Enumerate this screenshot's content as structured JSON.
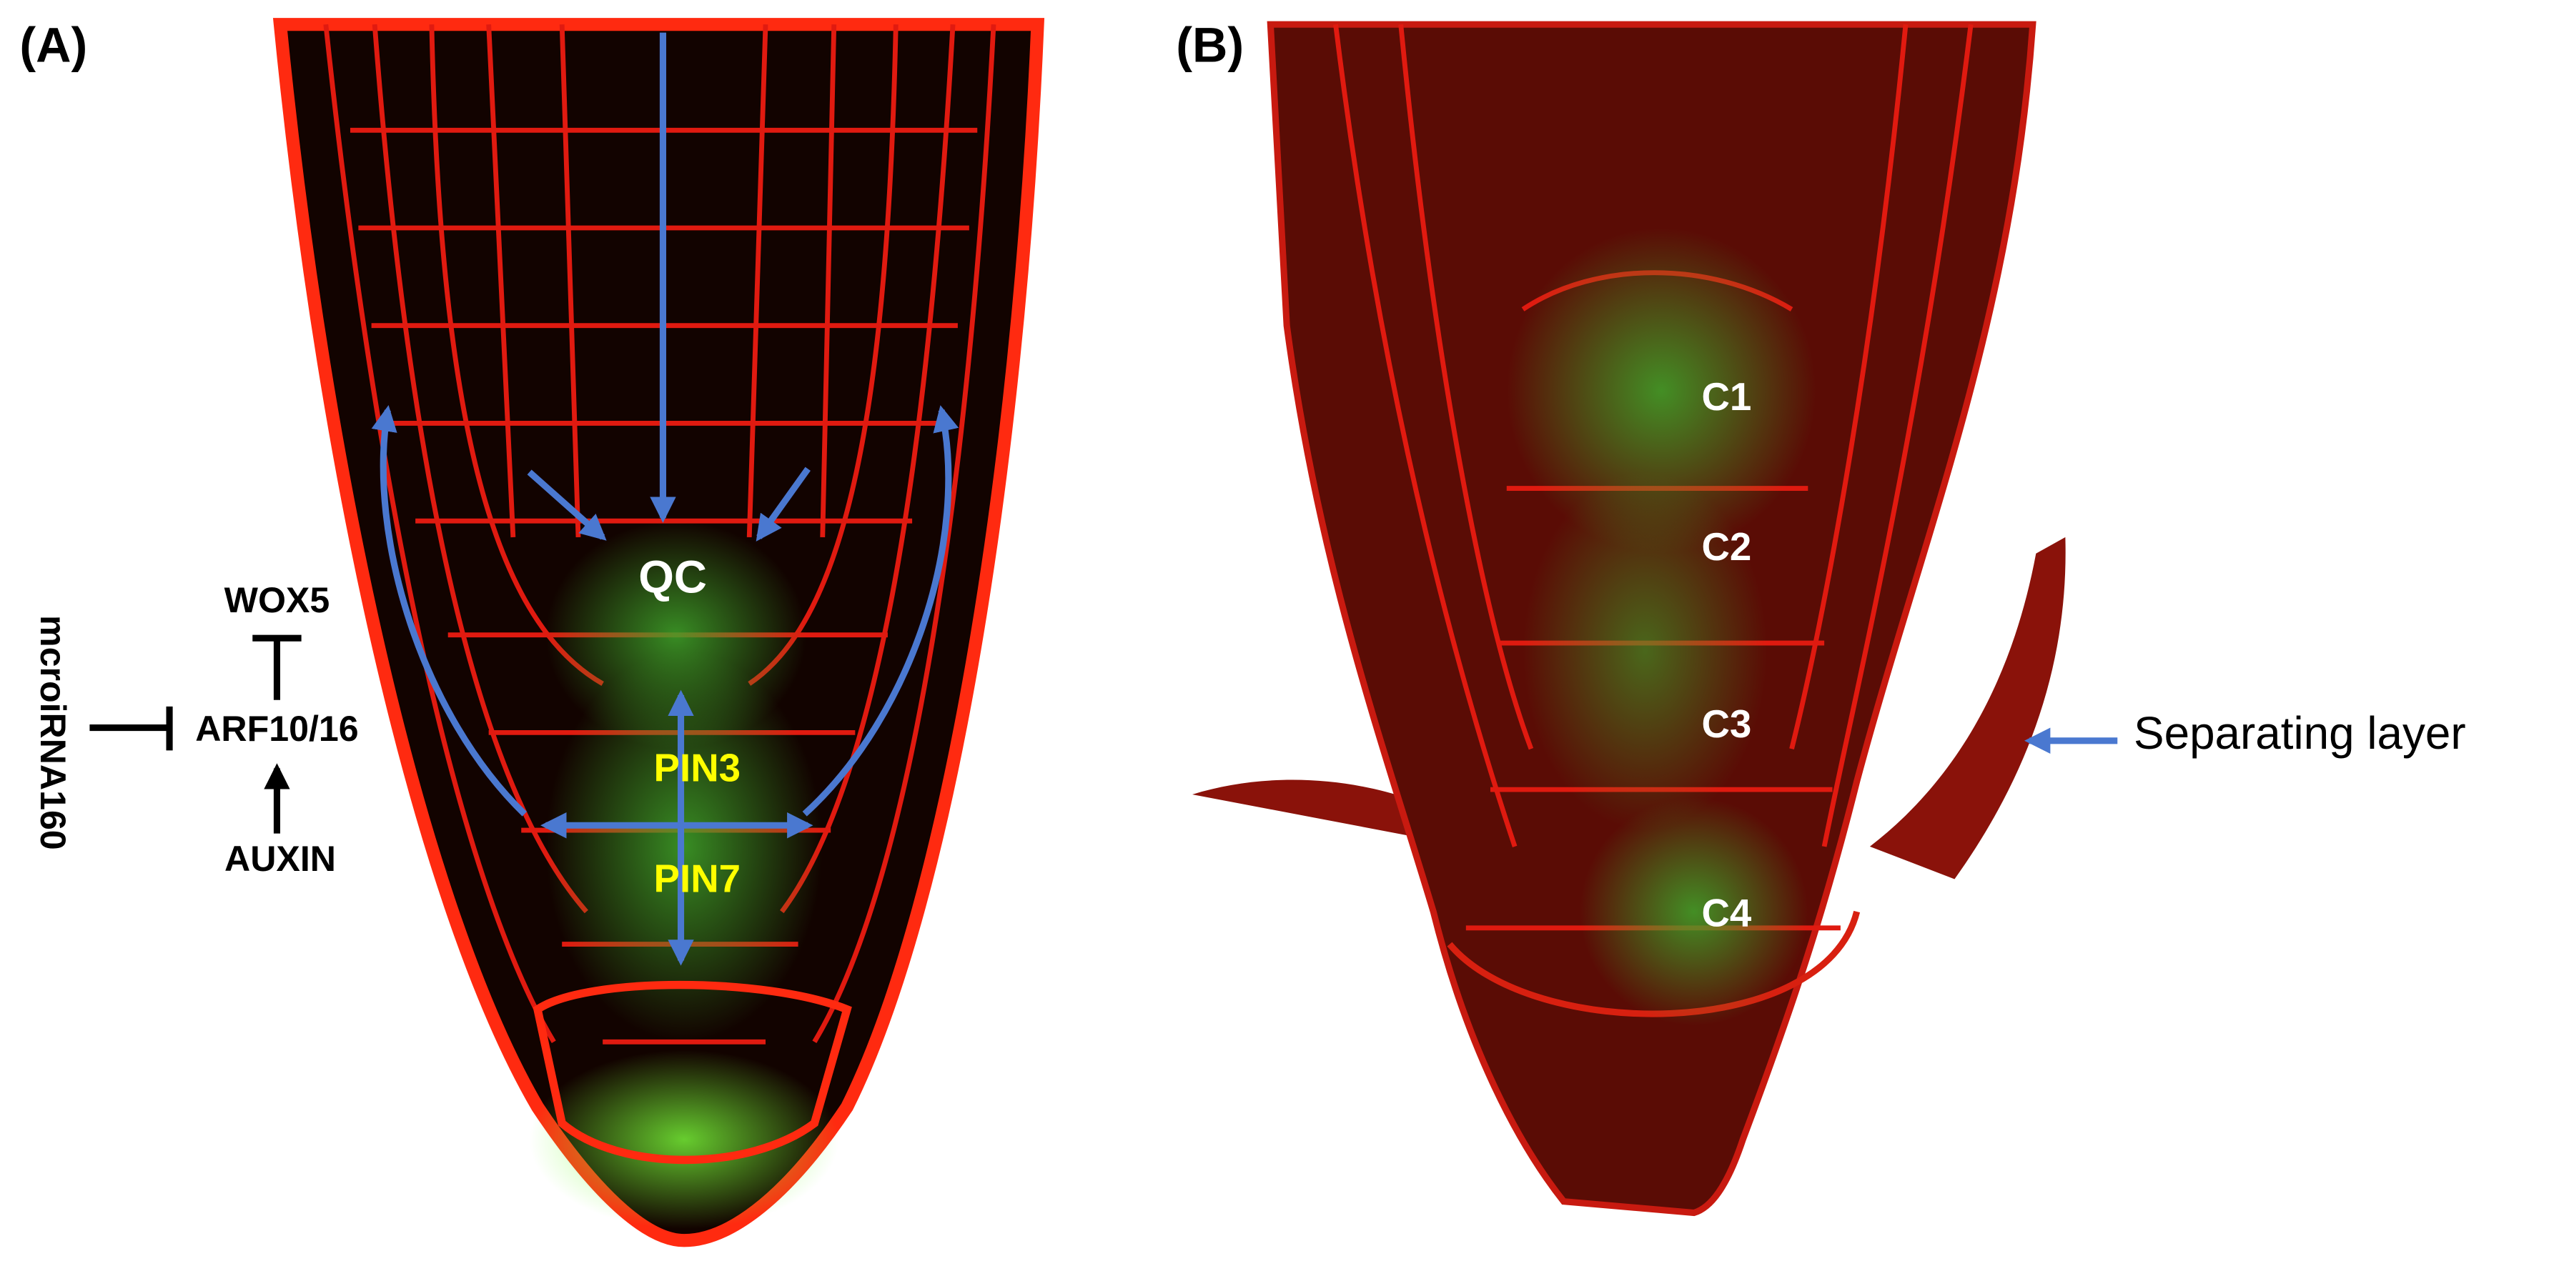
{
  "panel_a": {
    "label": "(A)",
    "qc": "QC",
    "pin3": "PIN3",
    "pin7": "PIN7",
    "pathway": {
      "wox5": "WOX5",
      "arf": "ARF10/16",
      "auxin": "AUXIN",
      "mirna": "mcroiRNA160"
    }
  },
  "panel_b": {
    "label": "(B)",
    "cells": [
      "C1",
      "C2",
      "C3",
      "C4"
    ],
    "separating_layer": "Separating layer"
  }
}
